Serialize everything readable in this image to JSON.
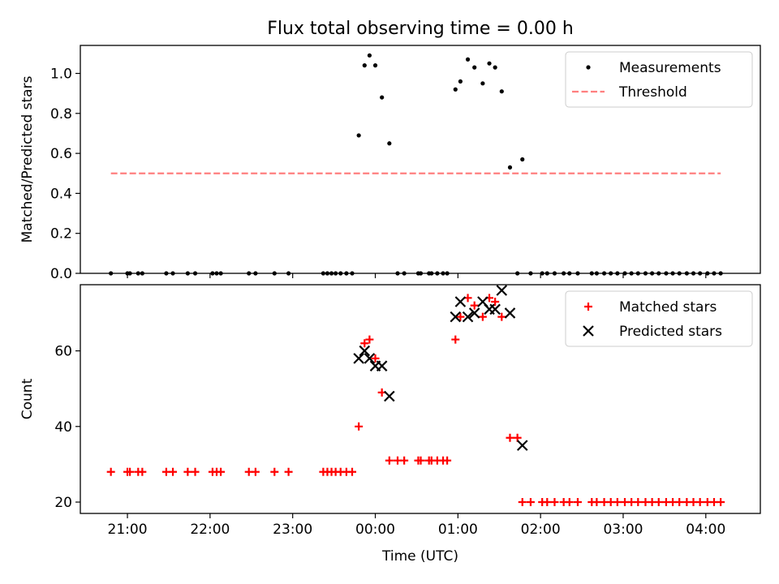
{
  "figure": {
    "title": "Flux total observing time = 0.00 h"
  },
  "chart_data": [
    {
      "type": "scatter",
      "title": "Flux total observing time = 0.00 h",
      "xlabel": "",
      "ylabel": "Matched/Predicted stars",
      "xlim": [
        20.43,
        28.66
      ],
      "ylim": [
        0.0,
        1.14
      ],
      "yticks": [
        0.0,
        0.2,
        0.4,
        0.6,
        0.8,
        1.0
      ],
      "ytick_labels": [
        "0.0",
        "0.2",
        "0.4",
        "0.6",
        "0.8",
        "1.0"
      ],
      "xticks": [
        21,
        22,
        23,
        24,
        25,
        26,
        27,
        28
      ],
      "grid": false,
      "legend": "top-right",
      "series": [
        {
          "name": "Measurements",
          "marker": "dot",
          "color": "#000000",
          "points": [
            [
              20.8,
              0
            ],
            [
              21.0,
              0
            ],
            [
              21.03,
              0
            ],
            [
              21.13,
              0
            ],
            [
              21.18,
              0
            ],
            [
              21.47,
              0
            ],
            [
              21.55,
              0
            ],
            [
              21.73,
              0
            ],
            [
              21.82,
              0
            ],
            [
              22.03,
              0
            ],
            [
              22.08,
              0
            ],
            [
              22.13,
              0
            ],
            [
              22.47,
              0
            ],
            [
              22.55,
              0
            ],
            [
              22.78,
              0
            ],
            [
              22.95,
              0
            ],
            [
              23.37,
              0
            ],
            [
              23.42,
              0
            ],
            [
              23.47,
              0
            ],
            [
              23.52,
              0
            ],
            [
              23.58,
              0
            ],
            [
              23.65,
              0
            ],
            [
              23.72,
              0
            ],
            [
              23.8,
              0.69
            ],
            [
              23.87,
              1.04
            ],
            [
              23.93,
              1.09
            ],
            [
              24.0,
              1.04
            ],
            [
              24.08,
              0.88
            ],
            [
              24.17,
              0.65
            ],
            [
              24.27,
              0
            ],
            [
              24.35,
              0
            ],
            [
              24.52,
              0
            ],
            [
              24.55,
              0
            ],
            [
              24.65,
              0
            ],
            [
              24.68,
              0
            ],
            [
              24.75,
              0
            ],
            [
              24.82,
              0
            ],
            [
              24.87,
              0
            ],
            [
              24.97,
              0.92
            ],
            [
              25.03,
              0.96
            ],
            [
              25.12,
              1.07
            ],
            [
              25.2,
              1.03
            ],
            [
              25.3,
              0.95
            ],
            [
              25.38,
              1.05
            ],
            [
              25.45,
              1.03
            ],
            [
              25.53,
              0.91
            ],
            [
              25.63,
              0.53
            ],
            [
              25.78,
              0.57
            ],
            [
              25.72,
              0
            ],
            [
              25.88,
              0
            ],
            [
              26.02,
              0
            ],
            [
              26.08,
              0
            ],
            [
              26.17,
              0
            ],
            [
              26.28,
              0
            ],
            [
              26.35,
              0
            ],
            [
              26.45,
              0
            ],
            [
              26.62,
              0
            ],
            [
              26.68,
              0
            ],
            [
              26.77,
              0
            ],
            [
              26.85,
              0
            ],
            [
              26.93,
              0
            ],
            [
              27.02,
              0
            ],
            [
              27.1,
              0
            ],
            [
              27.18,
              0
            ],
            [
              27.27,
              0
            ],
            [
              27.35,
              0
            ],
            [
              27.43,
              0
            ],
            [
              27.52,
              0
            ],
            [
              27.6,
              0
            ],
            [
              27.68,
              0
            ],
            [
              27.77,
              0
            ],
            [
              27.85,
              0
            ],
            [
              27.93,
              0
            ],
            [
              28.02,
              0
            ],
            [
              28.1,
              0
            ],
            [
              28.18,
              0
            ]
          ]
        },
        {
          "name": "Threshold",
          "marker": "dashed-line",
          "color": "#ff7f7f",
          "points": [
            [
              20.8,
              0.5
            ],
            [
              28.18,
              0.5
            ]
          ]
        }
      ]
    },
    {
      "type": "scatter",
      "xlabel": "Time (UTC)",
      "ylabel": "Count",
      "xlim": [
        20.43,
        28.66
      ],
      "ylim": [
        17,
        77.5
      ],
      "yticks": [
        20,
        40,
        60
      ],
      "ytick_labels": [
        "20",
        "40",
        "60"
      ],
      "xticks": [
        21,
        22,
        23,
        24,
        25,
        26,
        27,
        28
      ],
      "xtick_labels": [
        "21:00",
        "22:00",
        "23:00",
        "00:00",
        "01:00",
        "02:00",
        "03:00",
        "04:00"
      ],
      "grid": false,
      "legend": "top-right",
      "series": [
        {
          "name": "Matched stars",
          "marker": "plus",
          "color": "#ff0000",
          "points": [
            [
              20.8,
              28
            ],
            [
              21.0,
              28
            ],
            [
              21.03,
              28
            ],
            [
              21.13,
              28
            ],
            [
              21.18,
              28
            ],
            [
              21.47,
              28
            ],
            [
              21.55,
              28
            ],
            [
              21.73,
              28
            ],
            [
              21.82,
              28
            ],
            [
              22.03,
              28
            ],
            [
              22.08,
              28
            ],
            [
              22.13,
              28
            ],
            [
              22.47,
              28
            ],
            [
              22.55,
              28
            ],
            [
              22.78,
              28
            ],
            [
              22.95,
              28
            ],
            [
              23.37,
              28
            ],
            [
              23.42,
              28
            ],
            [
              23.47,
              28
            ],
            [
              23.52,
              28
            ],
            [
              23.58,
              28
            ],
            [
              23.65,
              28
            ],
            [
              23.72,
              28
            ],
            [
              23.8,
              40
            ],
            [
              23.87,
              62
            ],
            [
              23.93,
              63
            ],
            [
              24.0,
              58
            ],
            [
              24.08,
              49
            ],
            [
              24.17,
              31
            ],
            [
              24.27,
              31
            ],
            [
              24.35,
              31
            ],
            [
              24.52,
              31
            ],
            [
              24.55,
              31
            ],
            [
              24.65,
              31
            ],
            [
              24.68,
              31
            ],
            [
              24.75,
              31
            ],
            [
              24.82,
              31
            ],
            [
              24.87,
              31
            ],
            [
              24.97,
              63
            ],
            [
              25.03,
              69
            ],
            [
              25.12,
              74
            ],
            [
              25.2,
              72
            ],
            [
              25.3,
              69
            ],
            [
              25.38,
              74
            ],
            [
              25.45,
              73
            ],
            [
              25.53,
              69
            ],
            [
              25.63,
              37
            ],
            [
              25.72,
              37
            ],
            [
              25.78,
              20
            ],
            [
              25.88,
              20
            ],
            [
              26.02,
              20
            ],
            [
              26.08,
              20
            ],
            [
              26.17,
              20
            ],
            [
              26.28,
              20
            ],
            [
              26.35,
              20
            ],
            [
              26.45,
              20
            ],
            [
              26.62,
              20
            ],
            [
              26.68,
              20
            ],
            [
              26.77,
              20
            ],
            [
              26.85,
              20
            ],
            [
              26.93,
              20
            ],
            [
              27.02,
              20
            ],
            [
              27.1,
              20
            ],
            [
              27.18,
              20
            ],
            [
              27.27,
              20
            ],
            [
              27.35,
              20
            ],
            [
              27.43,
              20
            ],
            [
              27.52,
              20
            ],
            [
              27.6,
              20
            ],
            [
              27.68,
              20
            ],
            [
              27.77,
              20
            ],
            [
              27.85,
              20
            ],
            [
              27.93,
              20
            ],
            [
              28.02,
              20
            ],
            [
              28.1,
              20
            ],
            [
              28.18,
              20
            ]
          ]
        },
        {
          "name": "Predicted stars",
          "marker": "x",
          "color": "#000000",
          "points": [
            [
              23.8,
              58
            ],
            [
              23.87,
              60
            ],
            [
              23.93,
              58
            ],
            [
              24.0,
              56
            ],
            [
              24.08,
              56
            ],
            [
              24.17,
              48
            ],
            [
              24.97,
              69
            ],
            [
              25.03,
              73
            ],
            [
              25.12,
              69
            ],
            [
              25.2,
              70
            ],
            [
              25.3,
              73
            ],
            [
              25.38,
              71
            ],
            [
              25.45,
              71
            ],
            [
              25.53,
              76
            ],
            [
              25.63,
              70
            ],
            [
              25.78,
              35
            ]
          ]
        }
      ]
    }
  ]
}
